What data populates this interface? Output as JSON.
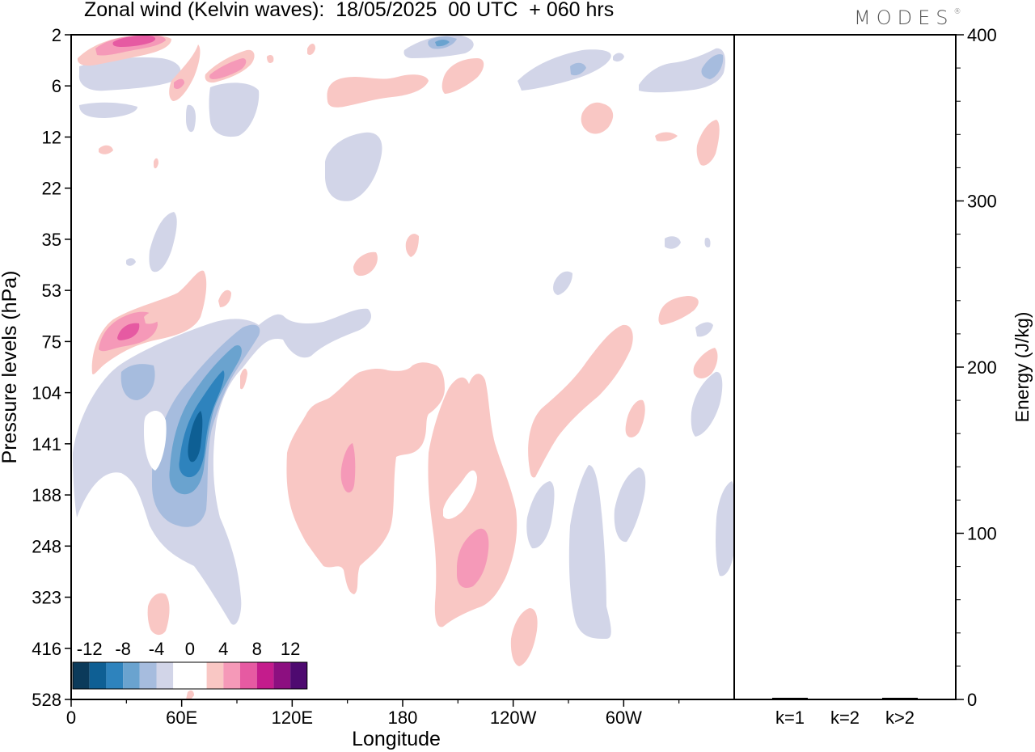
{
  "title": "Zonal wind (Kelvin waves):  18/05/2025  00 UTC  + 060 hrs",
  "logo": "MODES",
  "colors": {
    "blue_levels": [
      "#0b3a5a",
      "#0e5f94",
      "#2e83bd",
      "#6aa3cf",
      "#a6bcde",
      "#d2d5e8"
    ],
    "white": "#ffffff",
    "pink_levels": [
      "#f9c7c4",
      "#f599b8",
      "#e65aa2",
      "#c41c8c",
      "#8c0f80",
      "#4e0a70"
    ]
  },
  "chart_data": [
    {
      "type": "heatmap",
      "xlabel": "Longitude",
      "ylabel": "Pressure levels (hPa)",
      "x_ticks": [
        "0",
        "60E",
        "120E",
        "180",
        "120W",
        "60W"
      ],
      "x_tick_values": [
        0,
        60,
        120,
        180,
        240,
        300
      ],
      "x_range": [
        0,
        360
      ],
      "y_ticks": [
        "2",
        "6",
        "12",
        "22",
        "35",
        "53",
        "75",
        "104",
        "141",
        "188",
        "248",
        "323",
        "416",
        "528"
      ],
      "colorbar_labels": [
        "-12",
        "-8",
        "-4",
        "0",
        "4",
        "8",
        "12"
      ],
      "contour_levels": [
        -14,
        -12,
        -10,
        -8,
        -6,
        -4,
        -2,
        2,
        4,
        6,
        8,
        10,
        12,
        14
      ],
      "features": [
        {
          "lon": 65,
          "hPa": 141,
          "value": -12,
          "kind": "easterly"
        },
        {
          "lon": 30,
          "hPa": 75,
          "value": 8,
          "kind": "westerly"
        },
        {
          "lon": 35,
          "hPa": 2,
          "value": 8,
          "kind": "westerly"
        },
        {
          "lon": 92,
          "hPa": 6,
          "value": 6,
          "kind": "westerly"
        },
        {
          "lon": 218,
          "hPa": 280,
          "value": 6,
          "kind": "westerly"
        },
        {
          "lon": 150,
          "hPa": 165,
          "value": 6,
          "kind": "westerly"
        },
        {
          "lon": 205,
          "hPa": 2,
          "value": -6,
          "kind": "easterly"
        },
        {
          "lon": 345,
          "hPa": 6,
          "value": -6,
          "kind": "easterly"
        }
      ]
    },
    {
      "type": "bar",
      "categories": [
        "k=1",
        "k=2",
        "k>2"
      ],
      "values": [
        1,
        0,
        1
      ],
      "ylabel": "Energy (J/kg)",
      "ylim": [
        0,
        400
      ],
      "y_ticks": [
        0,
        100,
        200,
        300,
        400
      ]
    }
  ]
}
